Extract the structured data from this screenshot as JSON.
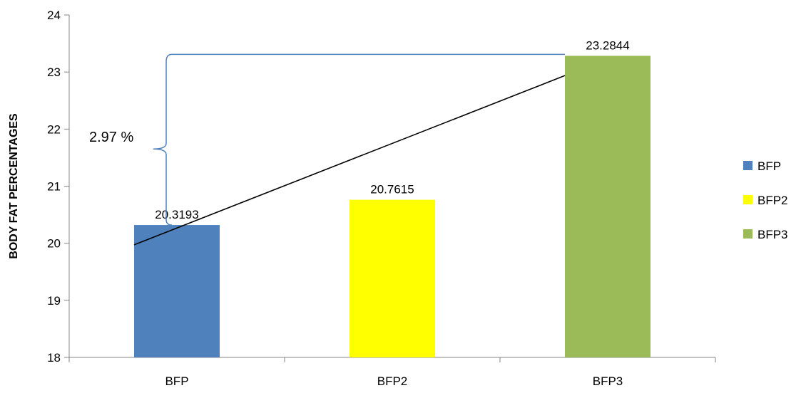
{
  "chart_data": {
    "type": "bar",
    "categories": [
      "BFP",
      "BFP2",
      "BFP3"
    ],
    "series": [
      {
        "name": "BFP",
        "values": [
          20.3193,
          null,
          null
        ],
        "color": "#4f81bd"
      },
      {
        "name": "BFP2",
        "values": [
          null,
          20.7615,
          null
        ],
        "color": "#ffff00"
      },
      {
        "name": "BFP3",
        "values": [
          null,
          null,
          23.2844
        ],
        "color": "#9bbb59"
      }
    ],
    "values": [
      20.3193,
      20.7615,
      23.2844
    ],
    "data_labels": [
      "20.3193",
      "20.7615",
      "23.2844"
    ],
    "ylabel": "BODY FAT PERCENTAGES",
    "xlabel": "",
    "ylim": [
      18,
      24
    ],
    "yticks": [
      "18",
      "19",
      "20",
      "21",
      "22",
      "23",
      "24"
    ],
    "legend": {
      "position": "right",
      "entries": [
        "BFP",
        "BFP2",
        "BFP3"
      ]
    },
    "grid": false,
    "trendline": {
      "type": "linear",
      "color": "#000000"
    },
    "annotation": {
      "text": "2.97 %",
      "type": "brace",
      "from": 20.3193,
      "to": 23.2844,
      "color": "#4f81bd"
    }
  }
}
